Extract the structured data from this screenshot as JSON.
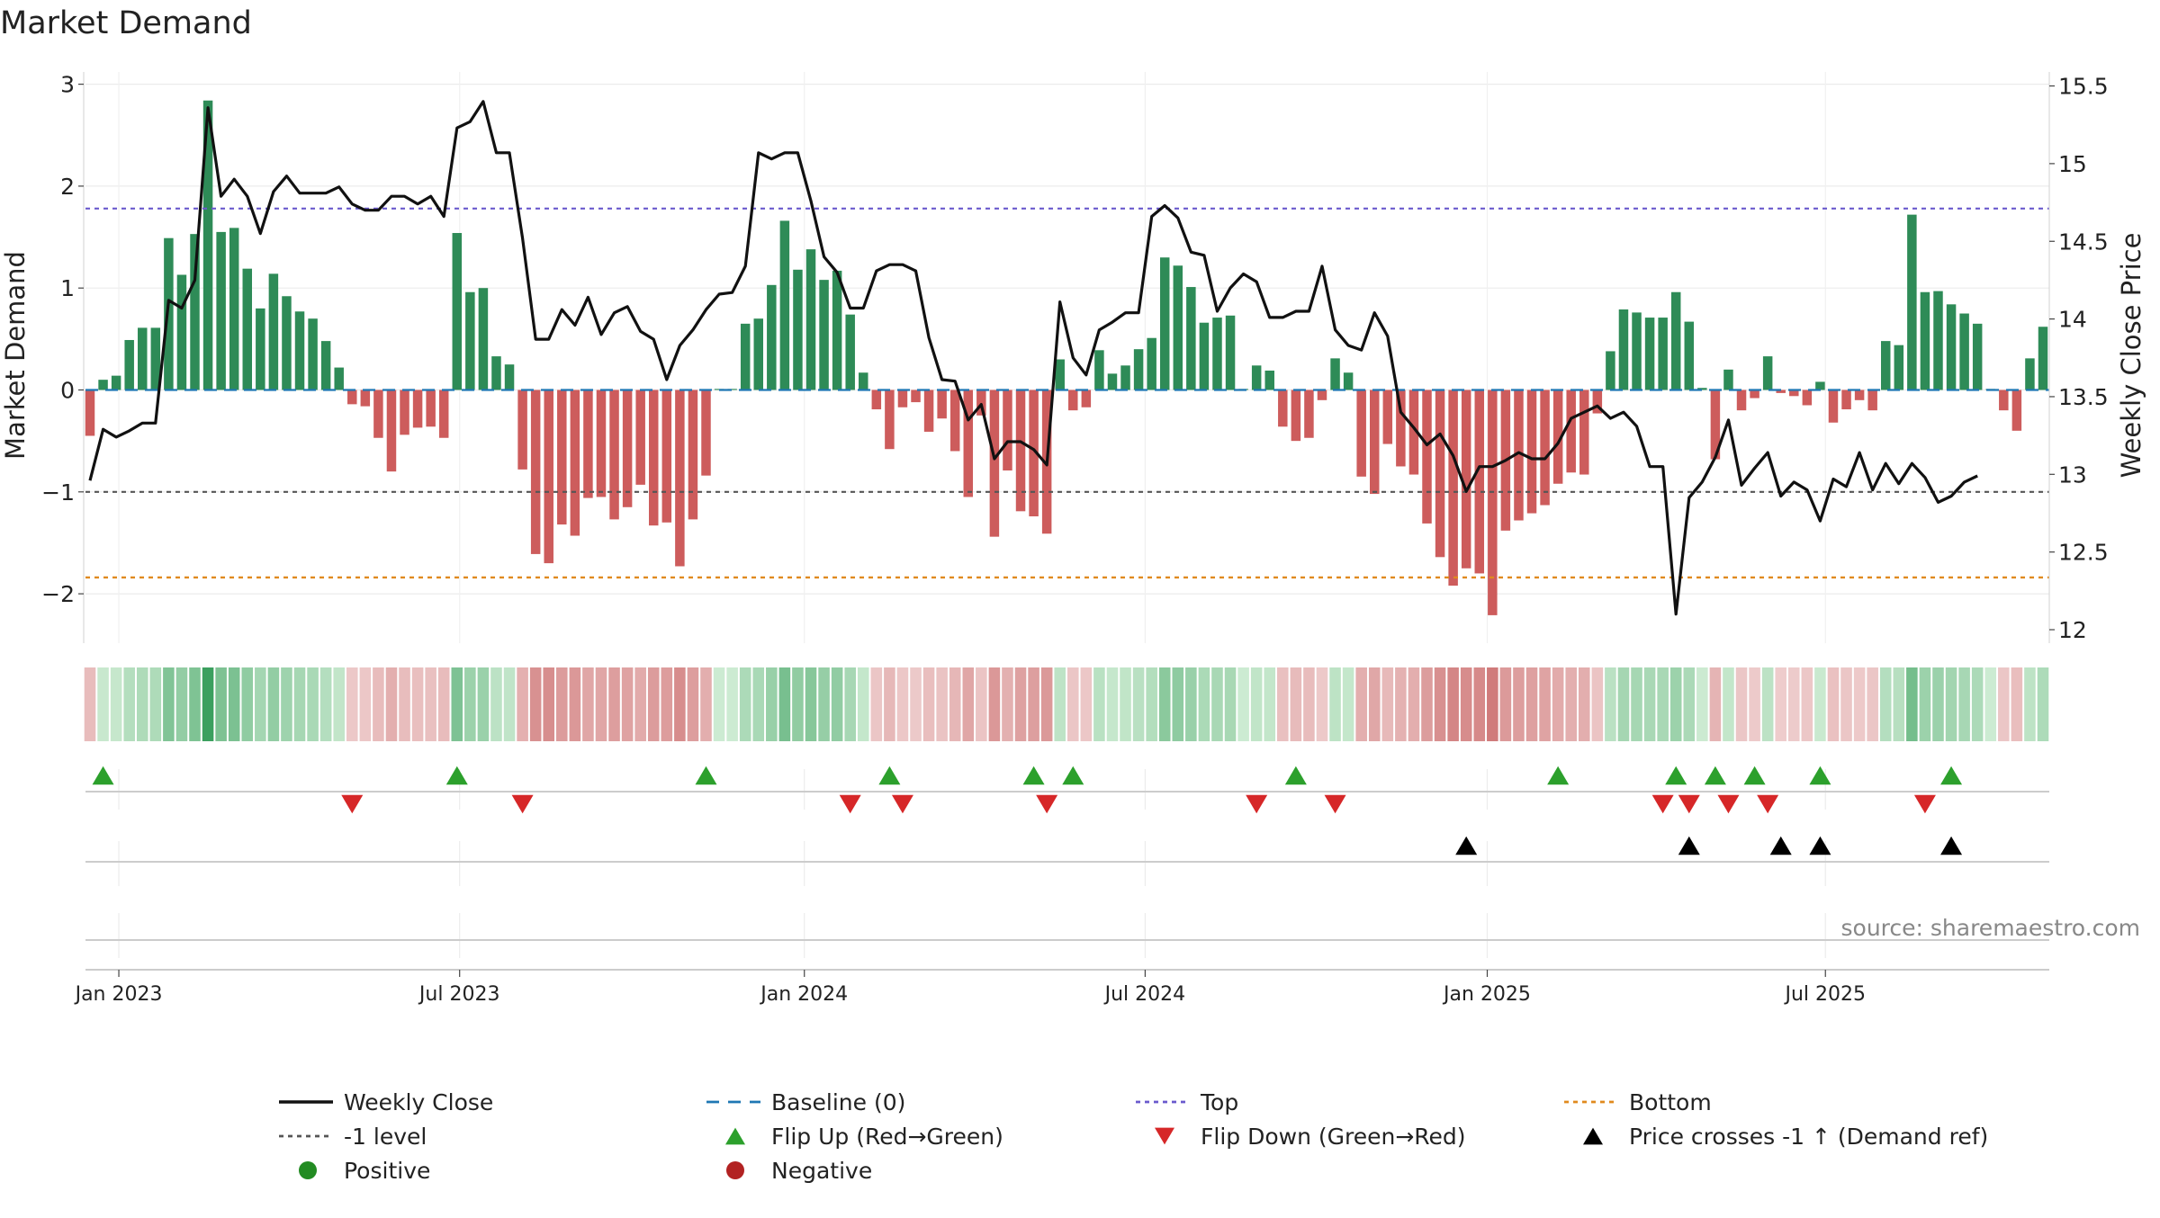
{
  "chart_data": {
    "type": "bar+line",
    "title": "Market Demand",
    "ylabel_left": "Market Demand",
    "ylabel_right": "Weekly Close Price",
    "source": "source: sharemaestro.com",
    "ylim_left": [
      -2.5,
      3.1
    ],
    "ylim_right": [
      11.95,
      15.55
    ],
    "yticks_left": [
      {
        "value": 3,
        "label": "3"
      },
      {
        "value": 2,
        "label": "2"
      },
      {
        "value": 1,
        "label": "1"
      },
      {
        "value": 0,
        "label": "0"
      },
      {
        "value": -1,
        "label": "−1"
      },
      {
        "value": -2,
        "label": "−2"
      }
    ],
    "yticks_right": [
      {
        "value": 15.5,
        "label": "15.5"
      },
      {
        "value": 15,
        "label": "15"
      },
      {
        "value": 14.5,
        "label": "14.5"
      },
      {
        "value": 14,
        "label": "14"
      },
      {
        "value": 13.5,
        "label": "13.5"
      },
      {
        "value": 13,
        "label": "13"
      },
      {
        "value": 12.5,
        "label": "12.5"
      },
      {
        "value": 12,
        "label": "12"
      }
    ],
    "x_ticks": [
      {
        "week": 2.2,
        "label": "Jan 2023"
      },
      {
        "week": 28.2,
        "label": "Jul 2023"
      },
      {
        "week": 54.5,
        "label": "Jan 2024"
      },
      {
        "week": 80.5,
        "label": "Jul 2024"
      },
      {
        "week": 106.6,
        "label": "Jan 2025"
      },
      {
        "week": 132.4,
        "label": "Jul 2025"
      }
    ],
    "reference_lines": {
      "top": 1.78,
      "minus_one": -1.0,
      "bottom": -1.84,
      "baseline": 0
    },
    "demand": [
      -0.45,
      0.1,
      0.14,
      0.49,
      0.61,
      0.61,
      1.49,
      1.13,
      1.53,
      2.84,
      1.55,
      1.59,
      1.19,
      0.8,
      1.14,
      0.92,
      0.77,
      0.7,
      0.48,
      0.22,
      -0.14,
      -0.16,
      -0.47,
      -0.8,
      -0.44,
      -0.37,
      -0.36,
      -0.47,
      1.54,
      0.96,
      1.0,
      0.33,
      0.25,
      -0.78,
      -1.61,
      -1.7,
      -1.32,
      -1.43,
      -1.06,
      -1.05,
      -1.27,
      -1.15,
      -0.93,
      -1.33,
      -1.3,
      -1.73,
      -1.27,
      -0.84,
      0.01,
      0.01,
      0.65,
      0.7,
      1.03,
      1.66,
      1.18,
      1.38,
      1.08,
      1.17,
      0.74,
      0.17,
      -0.19,
      -0.58,
      -0.17,
      -0.12,
      -0.41,
      -0.28,
      -0.6,
      -1.05,
      -0.25,
      -1.44,
      -0.79,
      -1.19,
      -1.24,
      -1.41,
      0.3,
      -0.2,
      -0.17,
      0.39,
      0.16,
      0.24,
      0.4,
      0.51,
      1.3,
      1.22,
      1.01,
      0.66,
      0.71,
      0.73,
      0.01,
      0.24,
      0.19,
      -0.36,
      -0.5,
      -0.47,
      -0.1,
      0.31,
      0.17,
      -0.85,
      -1.02,
      -0.53,
      -0.75,
      -0.83,
      -1.31,
      -1.64,
      -1.92,
      -1.75,
      -1.8,
      -2.21,
      -1.38,
      -1.28,
      -1.21,
      -1.13,
      -0.92,
      -0.81,
      -0.83,
      -0.23,
      0.38,
      0.79,
      0.76,
      0.71,
      0.71,
      0.96,
      0.67,
      0.02,
      -0.68,
      0.2,
      -0.2,
      -0.08,
      0.33,
      -0.03,
      -0.06,
      -0.15,
      0.08,
      -0.32,
      -0.19,
      -0.1,
      -0.2,
      0.48,
      0.44,
      1.72,
      0.96,
      0.97,
      0.84,
      0.75,
      0.65,
      0.01,
      -0.2,
      -0.4,
      0.31,
      0.62
    ],
    "weekly_close": [
      12.96,
      13.29,
      13.24,
      13.28,
      13.33,
      13.33,
      14.12,
      14.07,
      14.25,
      15.36,
      14.79,
      14.9,
      14.79,
      14.55,
      14.82,
      14.92,
      14.81,
      14.81,
      14.81,
      14.85,
      14.74,
      14.7,
      14.7,
      14.79,
      14.79,
      14.74,
      14.79,
      14.66,
      15.23,
      15.27,
      15.4,
      15.07,
      15.07,
      14.52,
      13.87,
      13.87,
      14.06,
      13.96,
      14.14,
      13.9,
      14.04,
      14.08,
      13.92,
      13.87,
      13.61,
      13.83,
      13.93,
      14.06,
      14.16,
      14.17,
      14.34,
      15.07,
      15.03,
      15.07,
      15.07,
      14.76,
      14.4,
      14.3,
      14.07,
      14.07,
      14.31,
      14.35,
      14.35,
      14.31,
      13.88,
      13.61,
      13.6,
      13.35,
      13.45,
      13.1,
      13.21,
      13.21,
      13.16,
      13.06,
      14.11,
      13.75,
      13.64,
      13.93,
      13.98,
      14.04,
      14.04,
      14.66,
      14.73,
      14.65,
      14.43,
      14.41,
      14.05,
      14.2,
      14.29,
      14.24,
      14.01,
      14.01,
      14.05,
      14.05,
      14.34,
      13.93,
      13.83,
      13.8,
      14.04,
      13.89,
      13.4,
      13.3,
      13.19,
      13.26,
      13.12,
      12.89,
      13.05,
      13.05,
      13.09,
      13.14,
      13.1,
      13.1,
      13.2,
      13.36,
      13.4,
      13.44,
      13.36,
      13.4,
      13.31,
      13.05,
      13.05,
      12.1,
      12.85,
      12.95,
      13.11,
      13.35,
      12.93,
      13.04,
      13.14,
      12.86,
      12.95,
      12.9,
      12.7,
      12.97,
      12.92,
      13.14,
      12.9,
      13.07,
      12.94,
      13.07,
      12.98,
      12.82,
      12.86,
      12.95,
      12.99
    ],
    "flip_up_weeks": [
      1,
      28,
      47,
      61,
      72,
      75,
      92,
      112,
      121,
      124,
      127,
      132,
      142
    ],
    "flip_down_weeks": [
      20,
      33,
      58,
      62,
      73,
      89,
      95,
      120,
      122,
      125,
      128,
      140
    ],
    "price_cross_weeks": [
      105,
      122,
      129,
      132,
      142
    ],
    "legend": [
      {
        "label": "Weekly Close",
        "kind": "line-solid",
        "color": "#111111"
      },
      {
        "label": "Baseline (0)",
        "kind": "line-dash",
        "color": "#1f77b4"
      },
      {
        "label": "Top",
        "kind": "line-dot",
        "color": "#6a5acd"
      },
      {
        "label": "Bottom",
        "kind": "line-dot",
        "color": "#e08a1e"
      },
      {
        "label": "-1 level",
        "kind": "line-dot",
        "color": "#555555"
      },
      {
        "label": "Flip Up (Red→Green)",
        "kind": "tri-up",
        "color": "#2ca02c"
      },
      {
        "label": "Flip Down (Green→Red)",
        "kind": "tri-down",
        "color": "#d62728"
      },
      {
        "label": "Price crosses -1 ↑ (Demand ref)",
        "kind": "tri-up",
        "color": "#000000"
      },
      {
        "label": "Positive",
        "kind": "dot",
        "color": "#228b22"
      },
      {
        "label": "Negative",
        "kind": "dot",
        "color": "#b22222"
      }
    ],
    "colors": {
      "positive_bar": "#2e8b57",
      "negative_bar": "#cd5c5c",
      "weekly_close": "#111111",
      "baseline": "#1f77b4",
      "top": "#6a5acd",
      "bottom": "#e08a1e",
      "minus_one": "#555555",
      "flip_up": "#2ca02c",
      "flip_down": "#d62728",
      "price_cross": "#000000"
    }
  }
}
